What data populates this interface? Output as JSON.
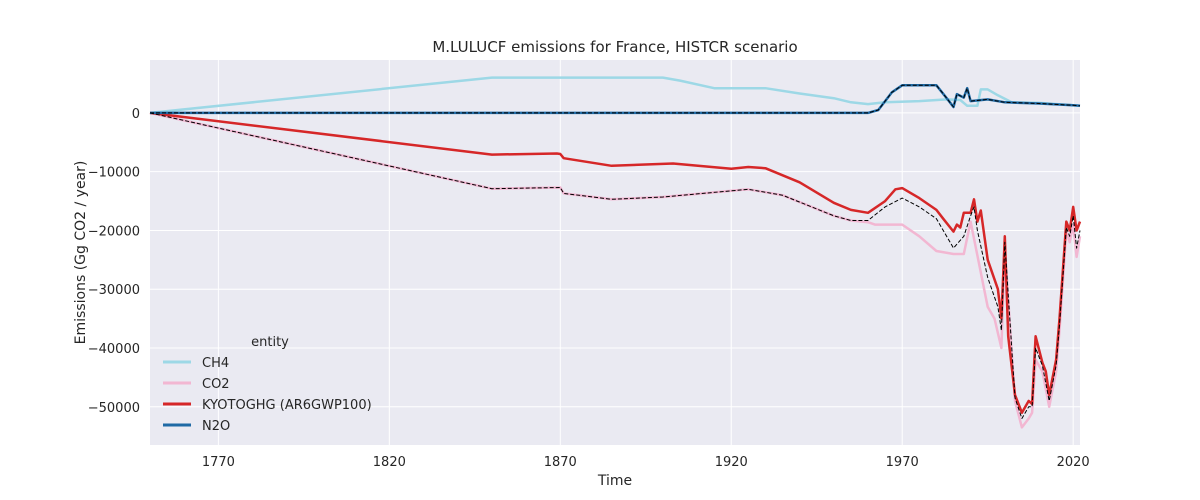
{
  "chart_data": {
    "type": "line",
    "title": "M.LULUCF emissions for France, HISTCR scenario",
    "xlabel": "Time",
    "ylabel": "Emissions (Gg CO2 / year)",
    "xlim": [
      1750,
      2022
    ],
    "ylim": [
      -56500,
      9000
    ],
    "x_ticks": [
      1770,
      1820,
      1870,
      1920,
      1970,
      2020
    ],
    "y_ticks": [
      0,
      -10000,
      -20000,
      -30000,
      -40000,
      -50000
    ],
    "y_tick_labels": [
      "0",
      "−10000",
      "−20000",
      "−30000",
      "−40000",
      "−50000"
    ],
    "grid": true,
    "legend": {
      "title": "entity",
      "placement": "lower-left",
      "entries": [
        "CH4",
        "CO2",
        "KYOTOGHG (AR6GWP100)",
        "N2O"
      ]
    },
    "series": [
      {
        "name": "CH4",
        "color": "#9dd8e6",
        "style": "solid",
        "points": [
          [
            1750,
            0
          ],
          [
            1850,
            6000
          ],
          [
            1900,
            6000
          ],
          [
            1905,
            5500
          ],
          [
            1915,
            4200
          ],
          [
            1930,
            4200
          ],
          [
            1940,
            3300
          ],
          [
            1950,
            2500
          ],
          [
            1955,
            1800
          ],
          [
            1960,
            1500
          ],
          [
            1965,
            1800
          ],
          [
            1975,
            2000
          ],
          [
            1983,
            2300
          ],
          [
            1987,
            2200
          ],
          [
            1989,
            1200
          ],
          [
            1992,
            1200
          ],
          [
            1993,
            4000
          ],
          [
            1995,
            4000
          ],
          [
            1998,
            3000
          ],
          [
            2002,
            1800
          ],
          [
            2010,
            1700
          ],
          [
            2020,
            1300
          ],
          [
            2022,
            1200
          ]
        ]
      },
      {
        "name": "CO2",
        "color": "#f2b7d2",
        "style": "solid",
        "points": [
          [
            1750,
            0
          ],
          [
            1850,
            -12900
          ],
          [
            1870,
            -12700
          ],
          [
            1871,
            -13700
          ],
          [
            1885,
            -14700
          ],
          [
            1900,
            -14300
          ],
          [
            1925,
            -13000
          ],
          [
            1935,
            -14000
          ],
          [
            1950,
            -17500
          ],
          [
            1955,
            -18300
          ],
          [
            1960,
            -18600
          ],
          [
            1962,
            -19000
          ],
          [
            1970,
            -19000
          ],
          [
            1975,
            -21000
          ],
          [
            1980,
            -23500
          ],
          [
            1985,
            -24000
          ],
          [
            1988,
            -24000
          ],
          [
            1990,
            -18500
          ],
          [
            1995,
            -33000
          ],
          [
            1997,
            -35000
          ],
          [
            1999,
            -40000
          ],
          [
            2000,
            -23000
          ],
          [
            2003,
            -49000
          ],
          [
            2005,
            -53500
          ],
          [
            2007,
            -52000
          ],
          [
            2008,
            -51000
          ],
          [
            2009,
            -42000
          ],
          [
            2011,
            -44000
          ],
          [
            2013,
            -50000
          ],
          [
            2015,
            -44000
          ],
          [
            2016,
            -37000
          ],
          [
            2018,
            -20000
          ],
          [
            2019,
            -22000
          ],
          [
            2020,
            -19000
          ],
          [
            2021,
            -24500
          ],
          [
            2022,
            -21000
          ]
        ]
      },
      {
        "name": "KYOTOGHG (AR6GWP100)",
        "color": "#d62728",
        "style": "solid",
        "points": [
          [
            1750,
            0
          ],
          [
            1850,
            -7100
          ],
          [
            1869,
            -6900
          ],
          [
            1870,
            -7000
          ],
          [
            1871,
            -7700
          ],
          [
            1885,
            -9000
          ],
          [
            1903,
            -8600
          ],
          [
            1920,
            -9500
          ],
          [
            1925,
            -9200
          ],
          [
            1930,
            -9400
          ],
          [
            1940,
            -11800
          ],
          [
            1950,
            -15300
          ],
          [
            1955,
            -16500
          ],
          [
            1960,
            -17000
          ],
          [
            1965,
            -15000
          ],
          [
            1968,
            -13000
          ],
          [
            1970,
            -12800
          ],
          [
            1975,
            -14500
          ],
          [
            1980,
            -16500
          ],
          [
            1982,
            -18000
          ],
          [
            1985,
            -20200
          ],
          [
            1986,
            -19000
          ],
          [
            1987,
            -19500
          ],
          [
            1988,
            -17000
          ],
          [
            1990,
            -17000
          ],
          [
            1991,
            -14700
          ],
          [
            1992,
            -18500
          ],
          [
            1993,
            -16600
          ],
          [
            1995,
            -25000
          ],
          [
            1998,
            -30000
          ],
          [
            1999,
            -35000
          ],
          [
            2000,
            -21000
          ],
          [
            2001,
            -38000
          ],
          [
            2003,
            -48000
          ],
          [
            2005,
            -51000
          ],
          [
            2007,
            -49000
          ],
          [
            2008,
            -49500
          ],
          [
            2009,
            -38000
          ],
          [
            2011,
            -42500
          ],
          [
            2012,
            -44000
          ],
          [
            2013,
            -48000
          ],
          [
            2015,
            -42000
          ],
          [
            2016,
            -35000
          ],
          [
            2018,
            -18500
          ],
          [
            2019,
            -20000
          ],
          [
            2020,
            -16000
          ],
          [
            2021,
            -20000
          ],
          [
            2022,
            -18500
          ]
        ]
      },
      {
        "name": "N2O",
        "color": "#1f6aa5",
        "style": "solid",
        "points": [
          [
            1750,
            0
          ],
          [
            1960,
            0
          ],
          [
            1963,
            500
          ],
          [
            1967,
            3500
          ],
          [
            1970,
            4700
          ],
          [
            1980,
            4700
          ],
          [
            1983,
            2500
          ],
          [
            1985,
            1000
          ],
          [
            1986,
            3200
          ],
          [
            1988,
            2600
          ],
          [
            1989,
            4200
          ],
          [
            1990,
            2000
          ],
          [
            1995,
            2300
          ],
          [
            2000,
            1800
          ],
          [
            2010,
            1600
          ],
          [
            2020,
            1300
          ],
          [
            2022,
            1200
          ]
        ]
      },
      {
        "name": "",
        "color": "#000000",
        "style": "dashed",
        "points": [
          [
            1750,
            0
          ],
          [
            1960,
            0
          ],
          [
            1963,
            500
          ],
          [
            1967,
            3500
          ],
          [
            1970,
            4700
          ],
          [
            1980,
            4700
          ],
          [
            1983,
            2500
          ],
          [
            1985,
            1000
          ],
          [
            1986,
            3200
          ],
          [
            1988,
            2600
          ],
          [
            1989,
            4200
          ],
          [
            1990,
            2000
          ],
          [
            1995,
            2300
          ],
          [
            2000,
            1800
          ],
          [
            2010,
            1600
          ],
          [
            2020,
            1300
          ],
          [
            2022,
            1200
          ]
        ]
      },
      {
        "name": "",
        "color": "#000000",
        "style": "dashed",
        "points": [
          [
            1750,
            0
          ],
          [
            1850,
            -12900
          ],
          [
            1870,
            -12700
          ],
          [
            1871,
            -13700
          ],
          [
            1885,
            -14700
          ],
          [
            1900,
            -14300
          ],
          [
            1925,
            -13000
          ],
          [
            1935,
            -14000
          ],
          [
            1950,
            -17500
          ],
          [
            1955,
            -18300
          ],
          [
            1960,
            -18300
          ],
          [
            1965,
            -16000
          ],
          [
            1970,
            -14500
          ],
          [
            1975,
            -16000
          ],
          [
            1980,
            -18000
          ],
          [
            1985,
            -23000
          ],
          [
            1988,
            -21000
          ],
          [
            1990,
            -17500
          ],
          [
            1991,
            -16000
          ],
          [
            1992,
            -20000
          ],
          [
            1995,
            -28000
          ],
          [
            1998,
            -33000
          ],
          [
            1999,
            -37000
          ],
          [
            2000,
            -22000
          ],
          [
            2003,
            -48500
          ],
          [
            2005,
            -52000
          ],
          [
            2007,
            -50000
          ],
          [
            2008,
            -50000
          ],
          [
            2009,
            -40000
          ],
          [
            2011,
            -43000
          ],
          [
            2013,
            -49000
          ],
          [
            2015,
            -43000
          ],
          [
            2016,
            -36000
          ],
          [
            2018,
            -19500
          ],
          [
            2019,
            -21000
          ],
          [
            2020,
            -17500
          ],
          [
            2021,
            -23000
          ],
          [
            2022,
            -20000
          ]
        ]
      }
    ]
  }
}
